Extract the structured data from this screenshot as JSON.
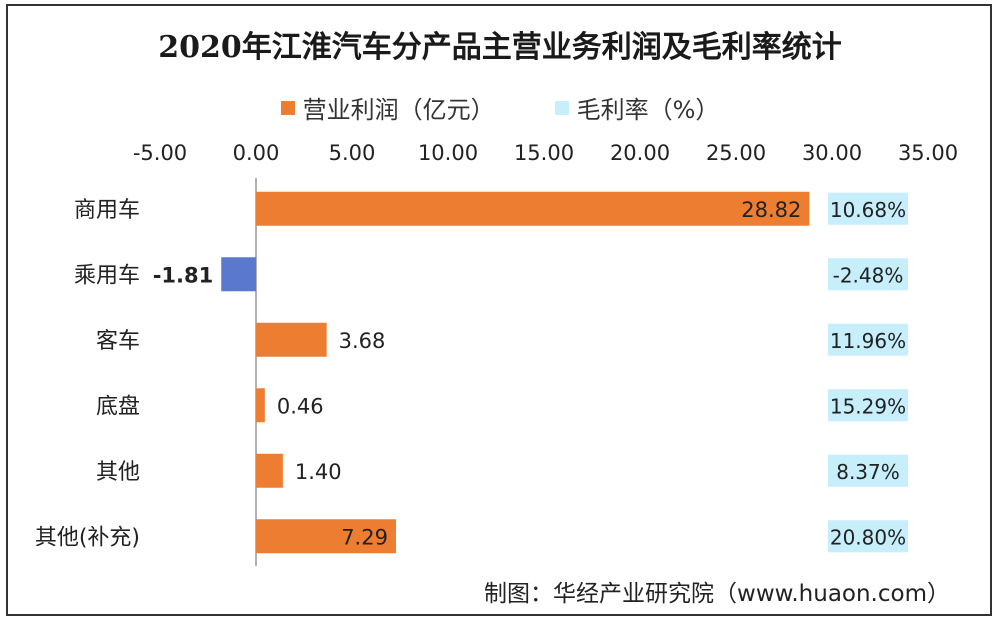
{
  "chart_data": {
    "type": "bar",
    "orientation": "horizontal",
    "title": "2020年江淮汽车分产品主营业务利润及毛利率统计",
    "categories": [
      "商用车",
      "乘用车",
      "客车",
      "底盘",
      "其他",
      "其他(补充)"
    ],
    "series": [
      {
        "name": "营业利润（亿元）",
        "values": [
          28.82,
          -1.81,
          3.68,
          0.46,
          1.4,
          7.29
        ],
        "labels": [
          "28.82",
          "-1.81",
          "3.68",
          "0.46",
          "1.40",
          "7.29"
        ],
        "color": "#ed7d31",
        "negative_color": "#5b78cf"
      },
      {
        "name": "毛利率（%）",
        "values": [
          10.68,
          -2.48,
          11.96,
          15.29,
          8.37,
          20.8
        ],
        "labels": [
          "10.68%",
          "-2.48%",
          "11.96%",
          "15.29%",
          "8.37%",
          "20.80%"
        ],
        "color": "#c6eefb"
      }
    ],
    "xlim": [
      -5,
      35
    ],
    "xticks": [
      "-5.00",
      "0.00",
      "5.00",
      "10.00",
      "15.00",
      "20.00",
      "25.00",
      "30.00",
      "35.00"
    ],
    "legend_position": "top",
    "grid": false
  },
  "source": "制图：华经产业研究院（www.huaon.com）"
}
